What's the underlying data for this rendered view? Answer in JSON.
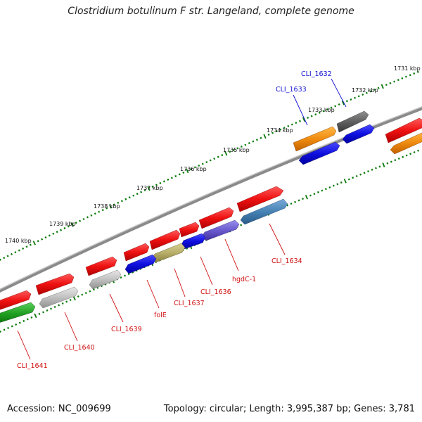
{
  "title": "Clostridium botulinum F str. Langeland, complete genome",
  "footer": {
    "accession": "Accession: NC_009699",
    "summary": "Topology: circular; Length: 3,995,387 bp; Genes: 3,781"
  },
  "ruler": {
    "labels": [
      "1731 kbp",
      "1732 kbp",
      "1733 kbp",
      "1734 kbp",
      "1735 kbp",
      "1736 kbp",
      "1737 kbp",
      "1738 kbp",
      "1739 kbp",
      "1740 kbp"
    ]
  },
  "colors": {
    "forward_cds": "#ee1111",
    "reverse_cds": "#1010e0",
    "gene_label_forward": "#d01010",
    "gene_label_reverse": "#1010d0",
    "backbone": "#808080",
    "tick": "#0a7a0a"
  },
  "gene_labels": [
    {
      "text": "CLI_1632",
      "color": "#1010d0"
    },
    {
      "text": "CLI_1633",
      "color": "#1010d0"
    },
    {
      "text": "CLI_1634",
      "color": "#d01010"
    },
    {
      "text": "hgdC-1",
      "color": "#d01010"
    },
    {
      "text": "CLI_1636",
      "color": "#d01010"
    },
    {
      "text": "CLI_1637",
      "color": "#d01010"
    },
    {
      "text": "folE",
      "color": "#d01010"
    },
    {
      "text": "CLI_1639",
      "color": "#d01010"
    },
    {
      "text": "CLI_1640",
      "color": "#d01010"
    },
    {
      "text": "CLI_1641",
      "color": "#d01010"
    }
  ]
}
